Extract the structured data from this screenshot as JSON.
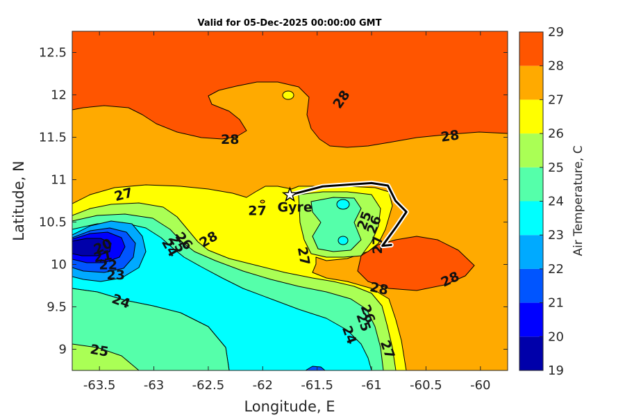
{
  "chart_data": {
    "type": "contour",
    "title": "Valid for 05-Dec-2025 00:00:00 GMT",
    "xlabel": "Longitude, E",
    "ylabel": "Latitude, N",
    "xlim": [
      -63.75,
      -59.75
    ],
    "ylim": [
      8.75,
      12.75
    ],
    "x_ticks": [
      -63.5,
      -63,
      -62.5,
      -62,
      -61.5,
      -61,
      -60.5,
      -60
    ],
    "x_tick_labels": [
      "-63.5",
      "-63",
      "-62.5",
      "-62",
      "-61.5",
      "-61",
      "-60.5",
      "-60"
    ],
    "y_ticks": [
      9,
      9.5,
      10,
      10.5,
      11,
      11.5,
      12,
      12.5
    ],
    "y_tick_labels": [
      "9",
      "9.5",
      "10",
      "10.5",
      "11",
      "11.5",
      "12",
      "12.5"
    ],
    "colorbar": {
      "label": "Air Temperature, C",
      "levels": [
        19,
        20,
        21,
        22,
        23,
        24,
        25,
        26,
        27,
        28,
        29
      ],
      "level_labels": [
        "19",
        "20",
        "21",
        "22",
        "23",
        "24",
        "25",
        "26",
        "27",
        "28",
        "29"
      ],
      "colors": [
        "#0000aa",
        "#0000ff",
        "#0055ff",
        "#00aaff",
        "#00ffff",
        "#55ffaa",
        "#aaff55",
        "#ffff00",
        "#ffaa00",
        "#ff5500",
        "#ff0000"
      ]
    },
    "contour_labels": [
      {
        "text": "28",
        "lon": -61.28,
        "lat": 11.95,
        "rot": -55
      },
      {
        "text": "28",
        "lon": -62.3,
        "lat": 11.48,
        "rot": 0
      },
      {
        "text": "28",
        "lon": -60.28,
        "lat": 11.52,
        "rot": -8
      },
      {
        "text": "27",
        "lon": -63.28,
        "lat": 10.83,
        "rot": -15
      },
      {
        "text": "27",
        "lon": -62.05,
        "lat": 10.64,
        "rot": 0
      },
      {
        "text": "28",
        "lon": -62.5,
        "lat": 10.3,
        "rot": -30
      },
      {
        "text": "25",
        "lon": -61.07,
        "lat": 10.52,
        "rot": -70
      },
      {
        "text": "26",
        "lon": -60.98,
        "lat": 10.47,
        "rot": -70
      },
      {
        "text": "27",
        "lon": -60.95,
        "lat": 10.23,
        "rot": -90
      },
      {
        "text": "27",
        "lon": -61.62,
        "lat": 10.1,
        "rot": 80
      },
      {
        "text": "28",
        "lon": -60.93,
        "lat": 9.72,
        "rot": 12
      },
      {
        "text": "28",
        "lon": -60.28,
        "lat": 9.83,
        "rot": -25
      },
      {
        "text": "20",
        "lon": -63.47,
        "lat": 10.22,
        "rot": -25
      },
      {
        "text": "21",
        "lon": -63.47,
        "lat": 10.1,
        "rot": -10
      },
      {
        "text": "22",
        "lon": -63.42,
        "lat": 10.0,
        "rot": 0
      },
      {
        "text": "23",
        "lon": -63.35,
        "lat": 9.88,
        "rot": 0
      },
      {
        "text": "24",
        "lon": -63.3,
        "lat": 9.57,
        "rot": 20
      },
      {
        "text": "25",
        "lon": -63.5,
        "lat": 8.99,
        "rot": 10
      },
      {
        "text": "24",
        "lon": -62.85,
        "lat": 10.2,
        "rot": 60
      },
      {
        "text": "25",
        "lon": -62.78,
        "lat": 10.25,
        "rot": 55
      },
      {
        "text": "26",
        "lon": -62.72,
        "lat": 10.28,
        "rot": 50
      },
      {
        "text": "24",
        "lon": -61.2,
        "lat": 9.17,
        "rot": 70
      },
      {
        "text": "25",
        "lon": -61.07,
        "lat": 9.32,
        "rot": 70
      },
      {
        "text": "26",
        "lon": -61.03,
        "lat": 9.42,
        "rot": 70
      },
      {
        "text": "27",
        "lon": -60.85,
        "lat": 9.0,
        "rot": 70
      }
    ],
    "station": {
      "name": "Gyre",
      "lon": -61.75,
      "lat": 10.82
    },
    "track": [
      [
        -61.75,
        10.82
      ],
      [
        -61.45,
        10.92
      ],
      [
        -61.0,
        10.96
      ],
      [
        -60.85,
        10.93
      ],
      [
        -60.78,
        10.75
      ],
      [
        -60.68,
        10.62
      ],
      [
        -60.77,
        10.45
      ],
      [
        -60.9,
        10.22
      ],
      [
        -60.82,
        10.23
      ]
    ]
  }
}
